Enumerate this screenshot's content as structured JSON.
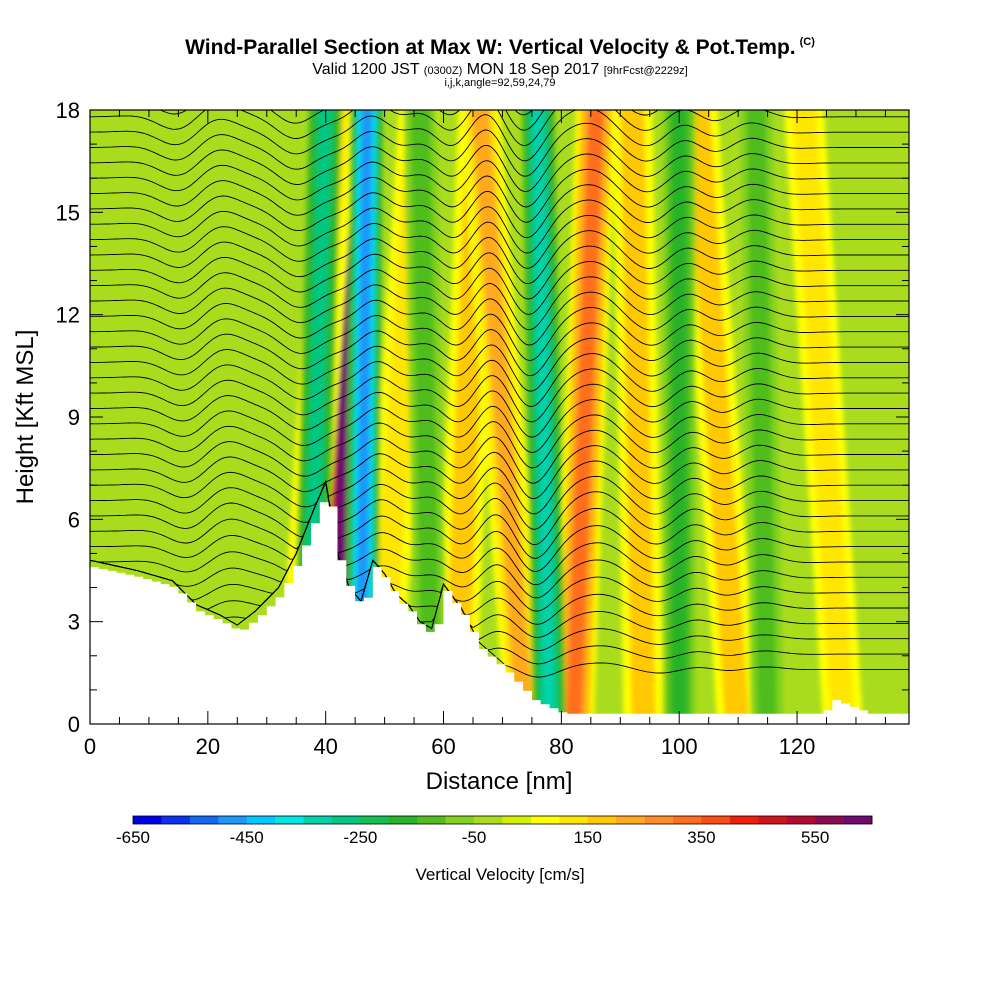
{
  "chart_data": {
    "type": "heatmap",
    "title": "Wind-Parallel Section at Max W: Vertical Velocity & Pot.Temp.",
    "title_mark": "(C)",
    "subtitle_main": "Valid 1200 JST",
    "subtitle_utc": "(0300Z)",
    "subtitle_date": "MON 18 Sep 2017",
    "subtitle_fcst": "[9hrFcst@2229z]",
    "subtitle2": "i,j,k,angle=92,59,24,79",
    "xlabel": "Distance [nm]",
    "ylabel": "Height [Kft MSL]",
    "xlim": [
      0,
      139
    ],
    "ylim": [
      0,
      18
    ],
    "x_ticks": [
      "0",
      "20",
      "40",
      "60",
      "80",
      "100",
      "120"
    ],
    "y_ticks": [
      "0",
      "3",
      "6",
      "9",
      "12",
      "15",
      "18"
    ],
    "colorbar": {
      "title": "Vertical Velocity [cm/s]",
      "labels": [
        "-650",
        "-450",
        "-250",
        "-50",
        "150",
        "350",
        "550"
      ],
      "min": -650,
      "max": 650,
      "step": 50,
      "colors": [
        "#0000e6",
        "#0a32f0",
        "#1466f5",
        "#1e96fa",
        "#00c8ff",
        "#00e6e6",
        "#00d2aa",
        "#00c882",
        "#14be50",
        "#28b428",
        "#50be1e",
        "#82d21e",
        "#aadc1e",
        "#d2f000",
        "#ffff00",
        "#ffe600",
        "#ffc800",
        "#ffaa1e",
        "#ff8c28",
        "#ff6e1e",
        "#ff4b14",
        "#f01e0a",
        "#d2141e",
        "#b40a32",
        "#8c0a50",
        "#6e0a6e"
      ]
    },
    "background_value_cm_s": -25,
    "updraft_bands": [
      {
        "x_bottom": 42,
        "x_top": 44,
        "peak_cm_s": 600
      },
      {
        "x_bottom": 35,
        "x_top": 42,
        "peak_cm_s": 120
      },
      {
        "x_bottom": 49,
        "x_top": 56,
        "peak_cm_s": 140
      },
      {
        "x_bottom": 62,
        "x_top": 66,
        "peak_cm_s": 160
      },
      {
        "x_bottom": 74,
        "x_top": 66,
        "peak_cm_s": 220
      },
      {
        "x_bottom": 82,
        "x_top": 86,
        "peak_cm_s": 300
      },
      {
        "x_bottom": 94,
        "x_top": 92,
        "peak_cm_s": 180
      },
      {
        "x_bottom": 110,
        "x_top": 103,
        "peak_cm_s": 160
      },
      {
        "x_bottom": 128,
        "x_top": 121,
        "peak_cm_s": 130
      }
    ],
    "downdraft_bands": [
      {
        "x_bottom": 37,
        "x_top": 40,
        "peak_cm_s": -300
      },
      {
        "x_bottom": 46,
        "x_top": 47,
        "peak_cm_s": -500
      },
      {
        "x_bottom": 58,
        "x_top": 56,
        "peak_cm_s": -140
      },
      {
        "x_bottom": 78,
        "x_top": 76,
        "peak_cm_s": -350
      },
      {
        "x_bottom": 100,
        "x_top": 100,
        "peak_cm_s": -200
      },
      {
        "x_bottom": 115,
        "x_top": 113,
        "peak_cm_s": -110
      }
    ],
    "terrain_profile": {
      "x": [
        0,
        8,
        14,
        18,
        22,
        25,
        28,
        32,
        35,
        38,
        40,
        42,
        44,
        46,
        48,
        50,
        52,
        54,
        56,
        58,
        60,
        63,
        66,
        70,
        75,
        80,
        90,
        100,
        110,
        124,
        126,
        132,
        139
      ],
      "height_kft": [
        4.6,
        4.3,
        4.0,
        3.3,
        3.0,
        2.7,
        3.1,
        3.8,
        4.8,
        6.1,
        6.9,
        4.8,
        3.8,
        3.4,
        4.6,
        4.2,
        3.6,
        3.3,
        2.8,
        2.6,
        3.9,
        3.2,
        2.2,
        1.6,
        0.7,
        0.3,
        0.3,
        0.3,
        0.3,
        0.3,
        0.7,
        0.3,
        0.3
      ]
    },
    "theta_contours": {
      "count": 40,
      "base_height_kft": 1.6,
      "spacing_kft": 0.45,
      "wave_centers_x": [
        20,
        40,
        47,
        56,
        66,
        78,
        84,
        100,
        110
      ],
      "wave_amplitude_kft": [
        0.5,
        0.9,
        1.1,
        0.6,
        0.9,
        1.2,
        0.8,
        0.5,
        0.4
      ]
    }
  }
}
